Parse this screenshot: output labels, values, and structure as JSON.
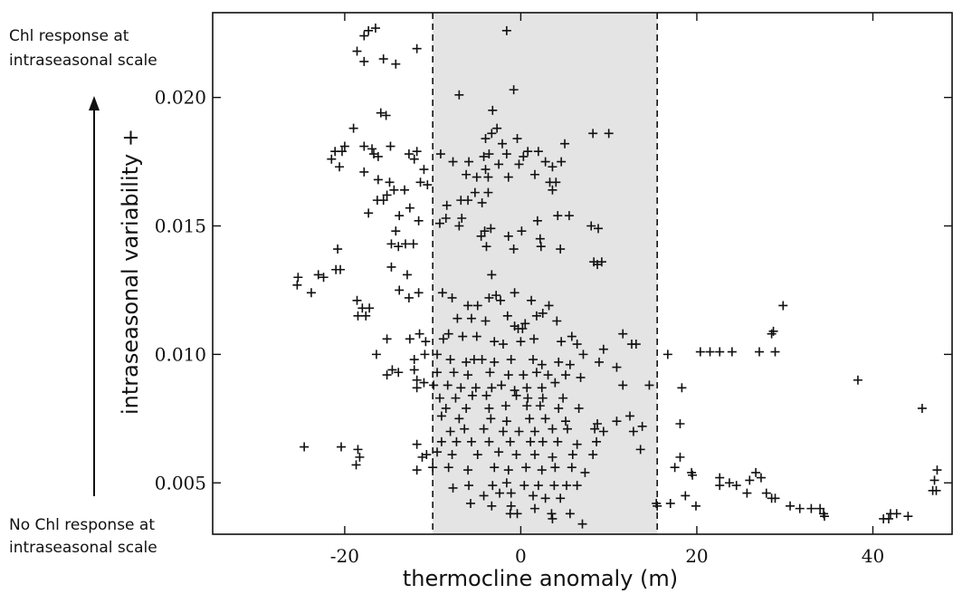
{
  "chart_data": {
    "type": "scatter",
    "xlabel": "thermocline anomaly (m)",
    "ylabel": "intraseasonal variability +",
    "xlim": [
      -35,
      49
    ],
    "ylim": [
      0.003,
      0.0233
    ],
    "x_ticks": [
      -20,
      0,
      20,
      40
    ],
    "y_ticks": [
      0.005,
      0.01,
      0.015,
      0.02
    ],
    "x_tick_labels": [
      "-20",
      "0",
      "20",
      "40"
    ],
    "y_tick_labels": [
      "0.005",
      "0.010",
      "0.015",
      "0.020"
    ],
    "shaded_band": {
      "x_from": -10,
      "x_to": 15.5
    },
    "annotations": {
      "top": [
        "Chl response at",
        "intraseasonal scale"
      ],
      "bottom": [
        "No Chl response at",
        "intraseasonal scale"
      ]
    },
    "marker": "plus",
    "points": [
      [
        -17.8,
        0.0224
      ],
      [
        -17.3,
        0.0226
      ],
      [
        -16.5,
        0.0227
      ],
      [
        -18.6,
        0.0218
      ],
      [
        -17.8,
        0.0214
      ],
      [
        -15.6,
        0.0215
      ],
      [
        -14.2,
        0.0213
      ],
      [
        -11.8,
        0.0219
      ],
      [
        -19.0,
        0.0188
      ],
      [
        -15.9,
        0.0194
      ],
      [
        -15.3,
        0.0193
      ],
      [
        -20.3,
        0.0179
      ],
      [
        -20.0,
        0.0181
      ],
      [
        -21.5,
        0.0176
      ],
      [
        -21.1,
        0.0179
      ],
      [
        -20.6,
        0.0173
      ],
      [
        -17.8,
        0.0181
      ],
      [
        -16.9,
        0.018
      ],
      [
        -16.7,
        0.0178
      ],
      [
        -16.2,
        0.0177
      ],
      [
        -14.8,
        0.0181
      ],
      [
        -17.8,
        0.0171
      ],
      [
        -16.2,
        0.0168
      ],
      [
        -14.9,
        0.0167
      ],
      [
        -14.4,
        0.0164
      ],
      [
        -12.7,
        0.0178
      ],
      [
        -12.1,
        0.0176
      ],
      [
        -11.8,
        0.0179
      ],
      [
        -11.0,
        0.0172
      ],
      [
        -11.4,
        0.0167
      ],
      [
        -10.6,
        0.0166
      ],
      [
        -13.2,
        0.0164
      ],
      [
        -16.3,
        0.016
      ],
      [
        -15.6,
        0.016
      ],
      [
        -15.2,
        0.0162
      ],
      [
        -17.3,
        0.0155
      ],
      [
        -14.2,
        0.0148
      ],
      [
        -13.8,
        0.0154
      ],
      [
        -12.6,
        0.0157
      ],
      [
        -11.6,
        0.0152
      ],
      [
        -14.7,
        0.0143
      ],
      [
        -13.9,
        0.0142
      ],
      [
        -13.1,
        0.0143
      ],
      [
        -12.2,
        0.0143
      ],
      [
        -20.8,
        0.0141
      ],
      [
        -25.3,
        0.013
      ],
      [
        -25.4,
        0.0127
      ],
      [
        -23.0,
        0.0131
      ],
      [
        -22.4,
        0.013
      ],
      [
        -23.8,
        0.0124
      ],
      [
        -21.0,
        0.0133
      ],
      [
        -20.5,
        0.0133
      ],
      [
        -14.7,
        0.0134
      ],
      [
        -12.9,
        0.0131
      ],
      [
        -13.8,
        0.0125
      ],
      [
        -11.6,
        0.0124
      ],
      [
        -12.7,
        0.0122
      ],
      [
        -18.6,
        0.0121
      ],
      [
        -18.0,
        0.0118
      ],
      [
        -17.2,
        0.0118
      ],
      [
        -17.6,
        0.0115
      ],
      [
        -18.5,
        0.0115
      ],
      [
        -15.2,
        0.0106
      ],
      [
        -16.4,
        0.01
      ],
      [
        -12.6,
        0.0106
      ],
      [
        -11.5,
        0.0108
      ],
      [
        -10.8,
        0.0105
      ],
      [
        -12.1,
        0.0098
      ],
      [
        -10.9,
        0.01
      ],
      [
        -14.6,
        0.0094
      ],
      [
        -13.9,
        0.0093
      ],
      [
        -15.2,
        0.0092
      ],
      [
        -12.1,
        0.0094
      ],
      [
        -11.8,
        0.009
      ],
      [
        -11.8,
        0.0087
      ],
      [
        -11.0,
        0.0089
      ],
      [
        -24.6,
        0.0064
      ],
      [
        -20.4,
        0.0064
      ],
      [
        -18.5,
        0.0063
      ],
      [
        -18.3,
        0.006
      ],
      [
        -18.7,
        0.0057
      ],
      [
        -11.8,
        0.0065
      ],
      [
        -10.7,
        0.0061
      ],
      [
        -11.2,
        0.006
      ],
      [
        -11.8,
        0.0055
      ],
      [
        -1.6,
        0.0226
      ],
      [
        -0.8,
        0.0203
      ],
      [
        -7.0,
        0.0201
      ],
      [
        -3.2,
        0.0195
      ],
      [
        -3.3,
        0.0186
      ],
      [
        -2.7,
        0.0188
      ],
      [
        -4.0,
        0.0184
      ],
      [
        -2.1,
        0.0182
      ],
      [
        -0.4,
        0.0184
      ],
      [
        -3.6,
        0.0178
      ],
      [
        -1.6,
        0.0178
      ],
      [
        0.8,
        0.0179
      ],
      [
        2.0,
        0.0179
      ],
      [
        -9.1,
        0.0178
      ],
      [
        -7.7,
        0.0175
      ],
      [
        -5.9,
        0.0175
      ],
      [
        -4.2,
        0.0177
      ],
      [
        -4.0,
        0.0172
      ],
      [
        -2.5,
        0.0174
      ],
      [
        -0.2,
        0.0174
      ],
      [
        0.3,
        0.0177
      ],
      [
        -6.2,
        0.017
      ],
      [
        -5.0,
        0.0169
      ],
      [
        -3.7,
        0.0169
      ],
      [
        -1.4,
        0.0169
      ],
      [
        1.6,
        0.017
      ],
      [
        2.8,
        0.0175
      ],
      [
        3.6,
        0.0173
      ],
      [
        4.6,
        0.0175
      ],
      [
        5.0,
        0.0182
      ],
      [
        3.3,
        0.0167
      ],
      [
        4.0,
        0.0167
      ],
      [
        3.6,
        0.0164
      ],
      [
        8.2,
        0.0186
      ],
      [
        10.0,
        0.0186
      ],
      [
        -8.4,
        0.0158
      ],
      [
        -6.8,
        0.016
      ],
      [
        -6.0,
        0.016
      ],
      [
        -5.2,
        0.0163
      ],
      [
        -3.7,
        0.0163
      ],
      [
        -4.4,
        0.0159
      ],
      [
        -9.2,
        0.0151
      ],
      [
        -8.5,
        0.0153
      ],
      [
        -6.7,
        0.0153
      ],
      [
        -7.0,
        0.015
      ],
      [
        -4.1,
        0.0148
      ],
      [
        -4.5,
        0.0146
      ],
      [
        -3.4,
        0.0149
      ],
      [
        -1.4,
        0.0146
      ],
      [
        0.1,
        0.0148
      ],
      [
        1.9,
        0.0152
      ],
      [
        5.5,
        0.0154
      ],
      [
        4.2,
        0.0154
      ],
      [
        2.2,
        0.0145
      ],
      [
        8.0,
        0.015
      ],
      [
        8.8,
        0.0149
      ],
      [
        -3.9,
        0.0142
      ],
      [
        -0.8,
        0.0141
      ],
      [
        2.3,
        0.0142
      ],
      [
        4.5,
        0.0141
      ],
      [
        8.3,
        0.0136
      ],
      [
        8.7,
        0.0135
      ],
      [
        9.2,
        0.0136
      ],
      [
        -3.3,
        0.0131
      ],
      [
        -8.9,
        0.0124
      ],
      [
        -7.8,
        0.0122
      ],
      [
        -3.6,
        0.0122
      ],
      [
        -2.8,
        0.0123
      ],
      [
        -0.7,
        0.0124
      ],
      [
        -6.0,
        0.0119
      ],
      [
        -4.9,
        0.0119
      ],
      [
        -2.3,
        0.0121
      ],
      [
        1.2,
        0.0121
      ],
      [
        3.2,
        0.0119
      ],
      [
        -7.2,
        0.0114
      ],
      [
        -5.6,
        0.0114
      ],
      [
        -4.0,
        0.0113
      ],
      [
        -1.5,
        0.0115
      ],
      [
        -0.7,
        0.0111
      ],
      [
        -0.3,
        0.011
      ],
      [
        0.2,
        0.011
      ],
      [
        0.5,
        0.0112
      ],
      [
        1.8,
        0.0115
      ],
      [
        2.5,
        0.0116
      ],
      [
        4.1,
        0.0113
      ],
      [
        -8.8,
        0.0106
      ],
      [
        -8.2,
        0.0108
      ],
      [
        -6.6,
        0.0107
      ],
      [
        -5.0,
        0.0107
      ],
      [
        -3.0,
        0.0105
      ],
      [
        -2.0,
        0.0104
      ],
      [
        0.0,
        0.0105
      ],
      [
        1.5,
        0.0106
      ],
      [
        4.6,
        0.0105
      ],
      [
        5.8,
        0.0107
      ],
      [
        6.4,
        0.0104
      ],
      [
        7.1,
        0.01
      ],
      [
        9.4,
        0.0102
      ],
      [
        11.6,
        0.0108
      ],
      [
        12.6,
        0.0104
      ],
      [
        13.1,
        0.0104
      ],
      [
        -9.5,
        0.01
      ],
      [
        -8.0,
        0.0098
      ],
      [
        -6.2,
        0.0097
      ],
      [
        -5.3,
        0.0098
      ],
      [
        -4.4,
        0.0098
      ],
      [
        -3.0,
        0.0097
      ],
      [
        -1.1,
        0.0098
      ],
      [
        1.4,
        0.0098
      ],
      [
        2.4,
        0.0096
      ],
      [
        4.3,
        0.0097
      ],
      [
        5.6,
        0.0096
      ],
      [
        8.9,
        0.0097
      ],
      [
        10.9,
        0.0095
      ],
      [
        -9.5,
        0.0093
      ],
      [
        -7.6,
        0.0093
      ],
      [
        -6.0,
        0.0092
      ],
      [
        -3.5,
        0.0093
      ],
      [
        -1.4,
        0.0092
      ],
      [
        0.3,
        0.0092
      ],
      [
        1.8,
        0.0093
      ],
      [
        3.1,
        0.0092
      ],
      [
        5.1,
        0.0092
      ],
      [
        6.8,
        0.0091
      ],
      [
        -9.9,
        0.0088
      ],
      [
        -8.3,
        0.0088
      ],
      [
        -6.8,
        0.0087
      ],
      [
        -5.1,
        0.0087
      ],
      [
        -3.3,
        0.0087
      ],
      [
        -2.2,
        0.0088
      ],
      [
        -0.7,
        0.0086
      ],
      [
        0.7,
        0.0087
      ],
      [
        2.4,
        0.0087
      ],
      [
        3.9,
        0.0089
      ],
      [
        11.6,
        0.0088
      ],
      [
        14.6,
        0.0088
      ],
      [
        -9.2,
        0.0083
      ],
      [
        -7.4,
        0.0083
      ],
      [
        -5.5,
        0.0084
      ],
      [
        -3.9,
        0.0084
      ],
      [
        -0.5,
        0.0084
      ],
      [
        0.8,
        0.0083
      ],
      [
        2.5,
        0.0083
      ],
      [
        4.8,
        0.0083
      ],
      [
        -8.5,
        0.0079
      ],
      [
        -6.2,
        0.0079
      ],
      [
        -3.6,
        0.0079
      ],
      [
        -1.7,
        0.008
      ],
      [
        0.7,
        0.008
      ],
      [
        2.2,
        0.008
      ],
      [
        4.3,
        0.0079
      ],
      [
        6.6,
        0.0079
      ],
      [
        -9.0,
        0.0076
      ],
      [
        -7.0,
        0.0075
      ],
      [
        -3.4,
        0.0075
      ],
      [
        -1.6,
        0.0074
      ],
      [
        1.0,
        0.0075
      ],
      [
        2.8,
        0.0075
      ],
      [
        5.1,
        0.0074
      ],
      [
        8.7,
        0.0073
      ],
      [
        10.9,
        0.0074
      ],
      [
        12.4,
        0.0076
      ],
      [
        13.8,
        0.0072
      ],
      [
        -8.0,
        0.007
      ],
      [
        -6.4,
        0.0071
      ],
      [
        -4.2,
        0.0071
      ],
      [
        -2.0,
        0.007
      ],
      [
        -0.2,
        0.007
      ],
      [
        1.6,
        0.007
      ],
      [
        3.6,
        0.0071
      ],
      [
        5.3,
        0.0071
      ],
      [
        8.4,
        0.0071
      ],
      [
        9.4,
        0.007
      ],
      [
        12.8,
        0.007
      ],
      [
        -9.0,
        0.0066
      ],
      [
        -7.3,
        0.0066
      ],
      [
        -5.6,
        0.0066
      ],
      [
        -3.6,
        0.0066
      ],
      [
        -1.2,
        0.0066
      ],
      [
        1.1,
        0.0066
      ],
      [
        2.5,
        0.0066
      ],
      [
        4.2,
        0.0066
      ],
      [
        6.4,
        0.0065
      ],
      [
        8.6,
        0.0066
      ],
      [
        -9.5,
        0.0062
      ],
      [
        -7.8,
        0.0061
      ],
      [
        -4.9,
        0.0061
      ],
      [
        -2.5,
        0.0062
      ],
      [
        -0.5,
        0.0061
      ],
      [
        1.6,
        0.0061
      ],
      [
        3.6,
        0.006
      ],
      [
        5.9,
        0.0061
      ],
      [
        8.2,
        0.0061
      ],
      [
        13.6,
        0.0063
      ],
      [
        -10.0,
        0.0056
      ],
      [
        -8.2,
        0.0056
      ],
      [
        -6.0,
        0.0055
      ],
      [
        -3.0,
        0.0056
      ],
      [
        -1.4,
        0.0055
      ],
      [
        0.6,
        0.0056
      ],
      [
        2.4,
        0.0055
      ],
      [
        3.9,
        0.0056
      ],
      [
        5.8,
        0.0056
      ],
      [
        7.3,
        0.0054
      ],
      [
        -7.7,
        0.0048
      ],
      [
        -5.9,
        0.0049
      ],
      [
        -3.2,
        0.0049
      ],
      [
        -1.6,
        0.005
      ],
      [
        0.4,
        0.0049
      ],
      [
        2.0,
        0.0049
      ],
      [
        3.8,
        0.0049
      ],
      [
        5.2,
        0.0049
      ],
      [
        6.4,
        0.0049
      ],
      [
        -4.2,
        0.0045
      ],
      [
        -2.4,
        0.0046
      ],
      [
        -1.1,
        0.0046
      ],
      [
        1.4,
        0.0045
      ],
      [
        2.8,
        0.0044
      ],
      [
        4.5,
        0.0044
      ],
      [
        -5.7,
        0.0042
      ],
      [
        -3.3,
        0.0041
      ],
      [
        -1.1,
        0.0041
      ],
      [
        1.6,
        0.004
      ],
      [
        3.5,
        0.0038
      ],
      [
        5.6,
        0.0038
      ],
      [
        -1.2,
        0.0038
      ],
      [
        -0.4,
        0.0038
      ],
      [
        3.6,
        0.0036
      ],
      [
        7.0,
        0.0034
      ],
      [
        15.4,
        0.0042
      ],
      [
        15.5,
        0.0041
      ],
      [
        17.0,
        0.0042
      ],
      [
        16.7,
        0.01
      ],
      [
        18.3,
        0.0087
      ],
      [
        18.1,
        0.0073
      ],
      [
        18.1,
        0.006
      ],
      [
        17.5,
        0.0056
      ],
      [
        19.4,
        0.0054
      ],
      [
        19.5,
        0.0053
      ],
      [
        18.7,
        0.0045
      ],
      [
        19.9,
        0.0041
      ],
      [
        20.4,
        0.0101
      ],
      [
        21.5,
        0.0101
      ],
      [
        22.6,
        0.0101
      ],
      [
        24.0,
        0.0101
      ],
      [
        22.6,
        0.0052
      ],
      [
        22.6,
        0.0049
      ],
      [
        23.7,
        0.005
      ],
      [
        24.5,
        0.0049
      ],
      [
        26.0,
        0.0051
      ],
      [
        26.7,
        0.0054
      ],
      [
        27.3,
        0.0052
      ],
      [
        25.7,
        0.0046
      ],
      [
        27.9,
        0.0046
      ],
      [
        28.5,
        0.0044
      ],
      [
        28.9,
        0.0044
      ],
      [
        29.8,
        0.0119
      ],
      [
        28.7,
        0.0109
      ],
      [
        28.5,
        0.0108
      ],
      [
        27.1,
        0.0101
      ],
      [
        28.9,
        0.0101
      ],
      [
        30.6,
        0.0041
      ],
      [
        31.7,
        0.004
      ],
      [
        33.0,
        0.004
      ],
      [
        34.0,
        0.004
      ],
      [
        34.4,
        0.0038
      ],
      [
        34.5,
        0.0037
      ],
      [
        38.3,
        0.009
      ],
      [
        41.8,
        0.0036
      ],
      [
        41.2,
        0.0036
      ],
      [
        42.0,
        0.0038
      ],
      [
        42.7,
        0.0038
      ],
      [
        44.0,
        0.0037
      ],
      [
        45.6,
        0.0079
      ],
      [
        47.3,
        0.0055
      ],
      [
        47.0,
        0.0051
      ],
      [
        47.2,
        0.0047
      ],
      [
        46.8,
        0.0047
      ]
    ]
  }
}
